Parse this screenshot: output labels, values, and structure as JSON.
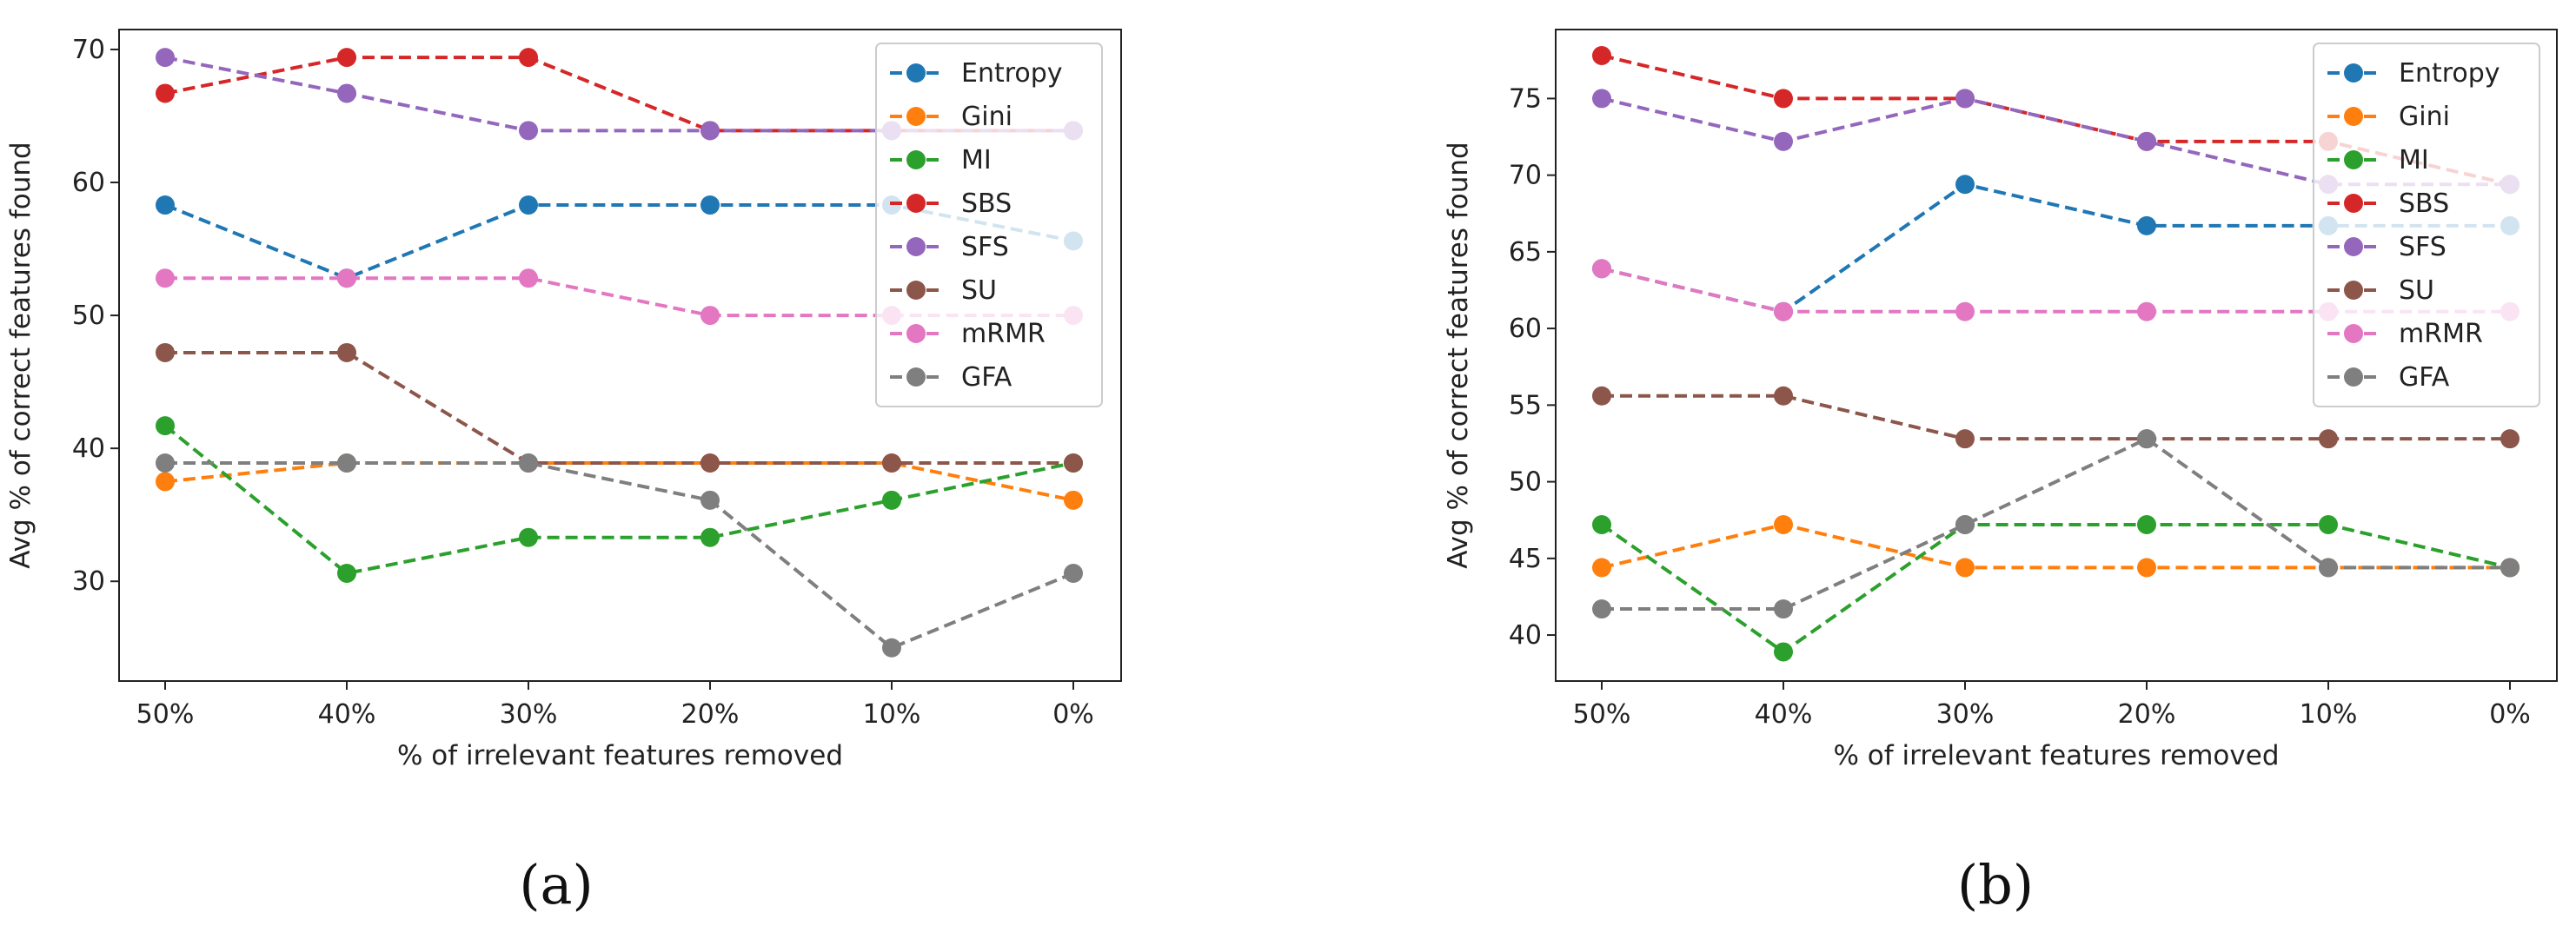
{
  "chart_data": [
    {
      "type": "line",
      "panel_label": "(a)",
      "categories": [
        "50%",
        "40%",
        "30%",
        "20%",
        "10%",
        "0%"
      ],
      "xlabel": "% of irrelevant features removed",
      "ylabel": "Avg % of correct features found",
      "ylim": [
        22.5,
        71.5
      ],
      "yticks": [
        30,
        40,
        50,
        60,
        70
      ],
      "legend_position": "top-right",
      "line_style": "dashed",
      "series": [
        {
          "name": "Entropy",
          "color": "#1f77b4",
          "values": [
            58.3,
            52.8,
            58.3,
            58.3,
            58.3,
            55.6
          ]
        },
        {
          "name": "Gini",
          "color": "#ff7f0e",
          "values": [
            37.5,
            38.9,
            38.9,
            38.9,
            38.9,
            36.1
          ]
        },
        {
          "name": "MI",
          "color": "#2ca02c",
          "values": [
            41.7,
            30.6,
            33.3,
            33.3,
            36.1,
            38.9
          ]
        },
        {
          "name": "SBS",
          "color": "#d62728",
          "values": [
            66.7,
            69.4,
            69.4,
            63.9,
            63.9,
            63.9
          ]
        },
        {
          "name": "SFS",
          "color": "#9467bd",
          "values": [
            69.4,
            66.7,
            63.9,
            63.9,
            63.9,
            63.9
          ]
        },
        {
          "name": "SU",
          "color": "#8c564b",
          "values": [
            47.2,
            47.2,
            38.9,
            38.9,
            38.9,
            38.9
          ]
        },
        {
          "name": "mRMR",
          "color": "#e377c2",
          "values": [
            52.8,
            52.8,
            52.8,
            50.0,
            50.0,
            50.0
          ]
        },
        {
          "name": "GFA",
          "color": "#7f7f7f",
          "values": [
            38.9,
            38.9,
            38.9,
            36.1,
            25.0,
            30.6
          ]
        }
      ]
    },
    {
      "type": "line",
      "panel_label": "(b)",
      "categories": [
        "50%",
        "40%",
        "30%",
        "20%",
        "10%",
        "0%"
      ],
      "xlabel": "% of irrelevant features removed",
      "ylabel": "Avg % of correct features found",
      "ylim": [
        37.0,
        79.5
      ],
      "yticks": [
        40,
        45,
        50,
        55,
        60,
        65,
        70,
        75
      ],
      "legend_position": "top-right",
      "line_style": "dashed",
      "series": [
        {
          "name": "Entropy",
          "color": "#1f77b4",
          "values": [
            63.9,
            61.1,
            69.4,
            66.7,
            66.7,
            66.7
          ]
        },
        {
          "name": "Gini",
          "color": "#ff7f0e",
          "values": [
            44.4,
            47.2,
            44.4,
            44.4,
            44.4,
            44.4
          ]
        },
        {
          "name": "MI",
          "color": "#2ca02c",
          "values": [
            47.2,
            38.9,
            47.2,
            47.2,
            47.2,
            44.4
          ]
        },
        {
          "name": "SBS",
          "color": "#d62728",
          "values": [
            77.8,
            75.0,
            75.0,
            72.2,
            72.2,
            69.4
          ]
        },
        {
          "name": "SFS",
          "color": "#9467bd",
          "values": [
            75.0,
            72.2,
            75.0,
            72.2,
            69.4,
            69.4
          ]
        },
        {
          "name": "SU",
          "color": "#8c564b",
          "values": [
            55.6,
            55.6,
            52.8,
            52.8,
            52.8,
            52.8
          ]
        },
        {
          "name": "mRMR",
          "color": "#e377c2",
          "values": [
            63.9,
            61.1,
            61.1,
            61.1,
            61.1,
            61.1
          ]
        },
        {
          "name": "GFA",
          "color": "#7f7f7f",
          "values": [
            41.7,
            41.7,
            47.2,
            52.8,
            44.4,
            44.4
          ]
        }
      ]
    }
  ]
}
